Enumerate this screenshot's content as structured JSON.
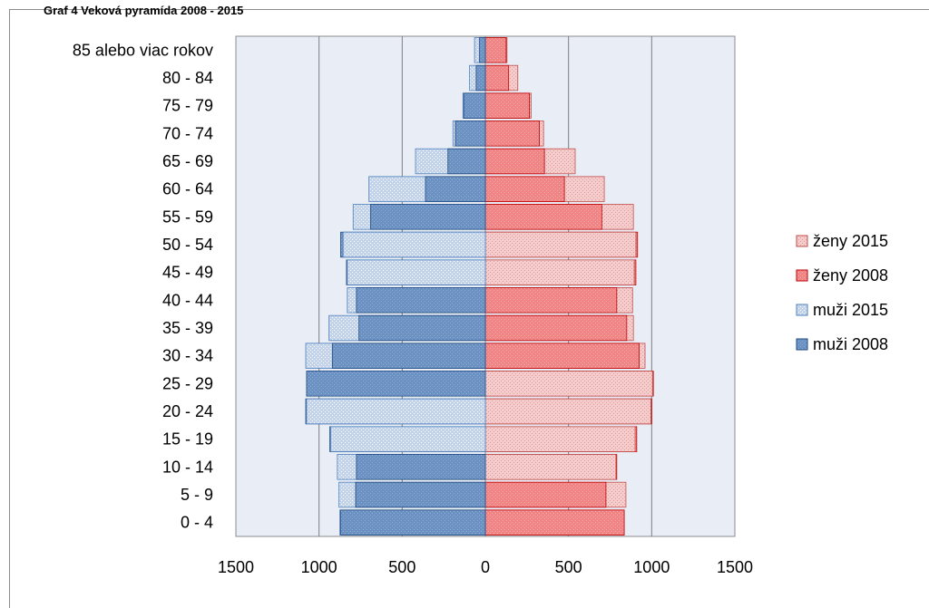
{
  "figure": {
    "title": "Graf 4 Veková pyramída 2008 - 2015"
  },
  "chart_data": {
    "type": "bar",
    "orientation": "horizontal",
    "title": "Graf 4 Veková pyramída 2008 - 2015",
    "categories": [
      "85 alebo viac rokov",
      "80 - 84",
      "75 - 79",
      "70 - 74",
      "65 - 69",
      "60 - 64",
      "55 - 59",
      "50 - 54",
      "45 - 49",
      "40 - 44",
      "35 - 39",
      "30 - 34",
      "25 - 29",
      "20 - 24",
      "15 - 19",
      "10 - 14",
      "5 - 9",
      "0 - 4"
    ],
    "series": [
      {
        "name": "ženy 2015",
        "side": "right",
        "color": "#f3c8c8",
        "values": [
          130,
          195,
          275,
          350,
          540,
          715,
          890,
          905,
          895,
          885,
          890,
          960,
          1005,
          995,
          900,
          785,
          845,
          835
        ]
      },
      {
        "name": "ženy 2008",
        "side": "right",
        "color": "#ff0000",
        "values": [
          125,
          140,
          265,
          325,
          355,
          475,
          700,
          915,
          905,
          790,
          850,
          925,
          1010,
          1000,
          910,
          790,
          725,
          835
        ]
      },
      {
        "name": "muži 2015",
        "side": "left",
        "color": "#b7cbe6",
        "values": [
          65,
          95,
          135,
          195,
          420,
          700,
          795,
          855,
          830,
          830,
          940,
          1080,
          1075,
          1075,
          930,
          890,
          880,
          875
        ]
      },
      {
        "name": "muži 2008",
        "side": "left",
        "color": "#4f7fb3",
        "values": [
          35,
          55,
          130,
          180,
          225,
          360,
          690,
          870,
          835,
          775,
          760,
          920,
          1075,
          1080,
          935,
          775,
          780,
          870
        ]
      }
    ],
    "x_ticks": [
      "1500",
      "1000",
      "500",
      "0",
      "500",
      "1000",
      "1500"
    ],
    "xlim": [
      -1500,
      1500
    ],
    "grid": true,
    "legend_position": "right"
  }
}
